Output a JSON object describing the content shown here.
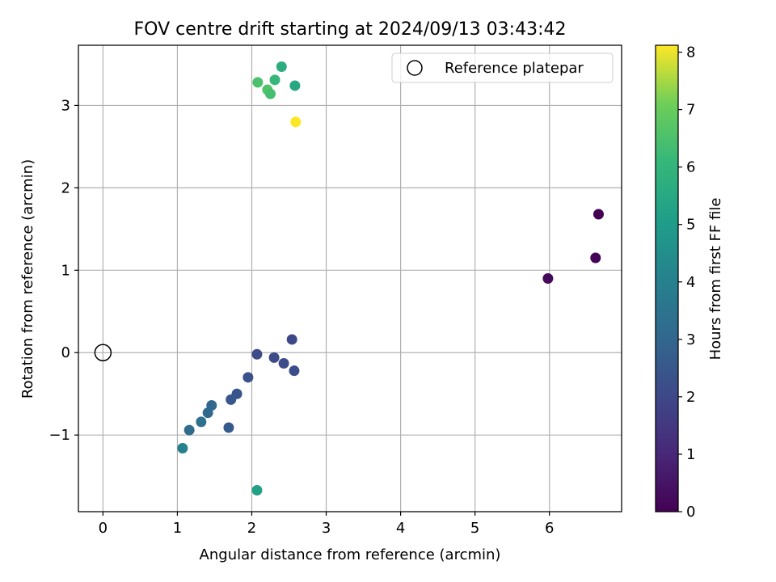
{
  "chart_data": {
    "type": "scatter",
    "title": "FOV centre drift starting at 2024/09/13 03:43:42",
    "xlabel": "Angular distance from reference (arcmin)",
    "ylabel": "Rotation from reference (arcmin)",
    "xlim": [
      -0.33,
      6.97
    ],
    "ylim": [
      -1.93,
      3.73
    ],
    "xticks": [
      0,
      1,
      2,
      3,
      4,
      5,
      6
    ],
    "yticks": [
      -1,
      0,
      1,
      2,
      3
    ],
    "xtick_labels": [
      "0",
      "1",
      "2",
      "3",
      "4",
      "5",
      "6"
    ],
    "ytick_labels": [
      "−1",
      "0",
      "1",
      "2",
      "3"
    ],
    "grid": true,
    "legend": {
      "position": "top-right",
      "entries": [
        "Reference platepar"
      ]
    },
    "reference_point": {
      "x": 0,
      "y": 0,
      "name": "Reference platepar"
    },
    "colorbar": {
      "label": "Hours from first FF file",
      "range": [
        0,
        8.12
      ],
      "ticks": [
        0,
        1,
        2,
        3,
        4,
        5,
        6,
        7,
        8
      ],
      "tick_labels": [
        "0",
        "1",
        "2",
        "3",
        "4",
        "5",
        "6",
        "7",
        "8"
      ],
      "colormap": "viridis"
    },
    "points": [
      {
        "x": 6.66,
        "y": 1.68,
        "hours": 0.0
      },
      {
        "x": 6.62,
        "y": 1.15,
        "hours": 0.1
      },
      {
        "x": 5.98,
        "y": 0.9,
        "hours": 0.2
      },
      {
        "x": 2.54,
        "y": 0.16,
        "hours": 2.0
      },
      {
        "x": 2.07,
        "y": -0.02,
        "hours": 2.05
      },
      {
        "x": 2.3,
        "y": -0.06,
        "hours": 2.1
      },
      {
        "x": 2.43,
        "y": -0.13,
        "hours": 2.15
      },
      {
        "x": 2.57,
        "y": -0.22,
        "hours": 2.2
      },
      {
        "x": 1.95,
        "y": -0.3,
        "hours": 2.3
      },
      {
        "x": 1.8,
        "y": -0.5,
        "hours": 2.4
      },
      {
        "x": 1.72,
        "y": -0.57,
        "hours": 2.5
      },
      {
        "x": 1.69,
        "y": -0.91,
        "hours": 2.6
      },
      {
        "x": 1.46,
        "y": -0.64,
        "hours": 3.0
      },
      {
        "x": 1.41,
        "y": -0.73,
        "hours": 3.1
      },
      {
        "x": 1.32,
        "y": -0.84,
        "hours": 3.4
      },
      {
        "x": 1.16,
        "y": -0.94,
        "hours": 3.2
      },
      {
        "x": 1.07,
        "y": -1.16,
        "hours": 4.0
      },
      {
        "x": 2.07,
        "y": -1.67,
        "hours": 5.2
      },
      {
        "x": 2.58,
        "y": 3.24,
        "hours": 5.5
      },
      {
        "x": 2.4,
        "y": 3.47,
        "hours": 5.7
      },
      {
        "x": 2.31,
        "y": 3.31,
        "hours": 6.1
      },
      {
        "x": 2.08,
        "y": 3.28,
        "hours": 6.5
      },
      {
        "x": 2.21,
        "y": 3.19,
        "hours": 6.6
      },
      {
        "x": 2.25,
        "y": 3.14,
        "hours": 6.4
      },
      {
        "x": 2.59,
        "y": 2.8,
        "hours": 8.12
      }
    ]
  }
}
